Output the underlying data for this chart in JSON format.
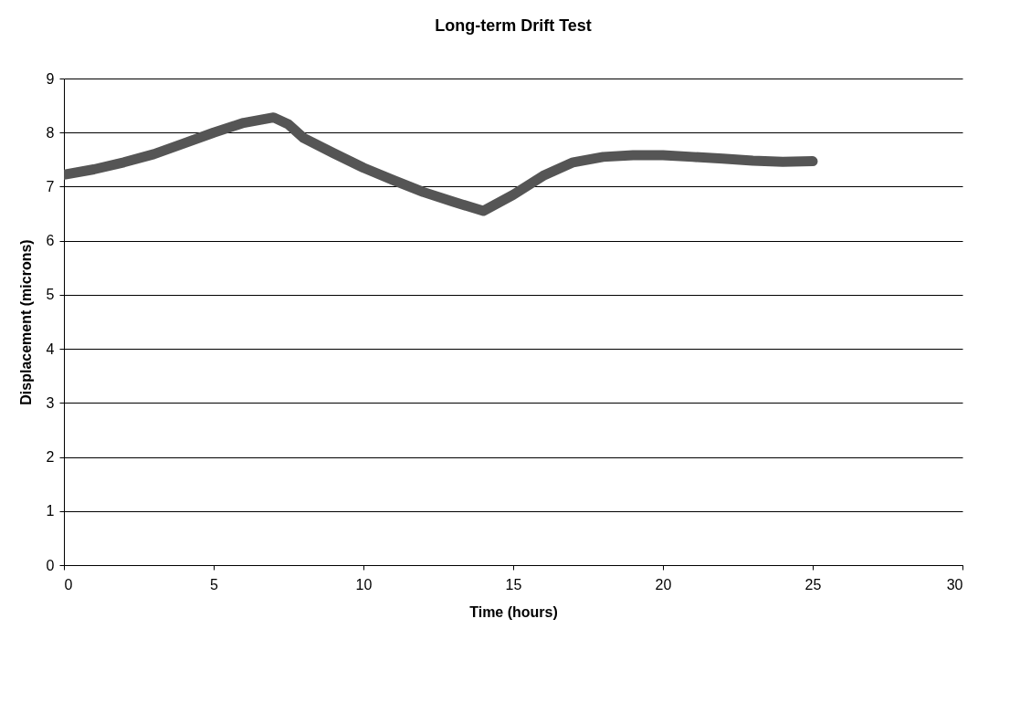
{
  "chart_data": {
    "type": "line",
    "title": "Long-term Drift Test",
    "xlabel": "Time (hours)",
    "ylabel": "Displacement (microns)",
    "x": [
      0,
      1,
      2,
      3,
      4,
      5,
      6,
      7,
      7.5,
      8,
      9,
      10,
      11,
      12,
      13,
      14,
      15,
      16,
      17,
      18,
      19,
      20,
      21,
      22,
      23,
      24,
      25
    ],
    "series": [
      {
        "color": "#555555",
        "values": [
          7.22,
          7.32,
          7.45,
          7.6,
          7.8,
          8.0,
          8.18,
          8.28,
          8.15,
          7.9,
          7.62,
          7.35,
          7.12,
          6.9,
          6.72,
          6.55,
          6.85,
          7.2,
          7.45,
          7.55,
          7.58,
          7.58,
          7.55,
          7.52,
          7.48,
          7.46,
          7.47
        ]
      }
    ],
    "xlim": [
      0,
      30
    ],
    "xticks": [
      0,
      5,
      10,
      15,
      20,
      25,
      30
    ],
    "ylim": [
      0,
      9
    ],
    "yticks": [
      0,
      1,
      2,
      3,
      4,
      5,
      6,
      7,
      8,
      9
    ],
    "grid": "y",
    "line_style": "solid"
  }
}
